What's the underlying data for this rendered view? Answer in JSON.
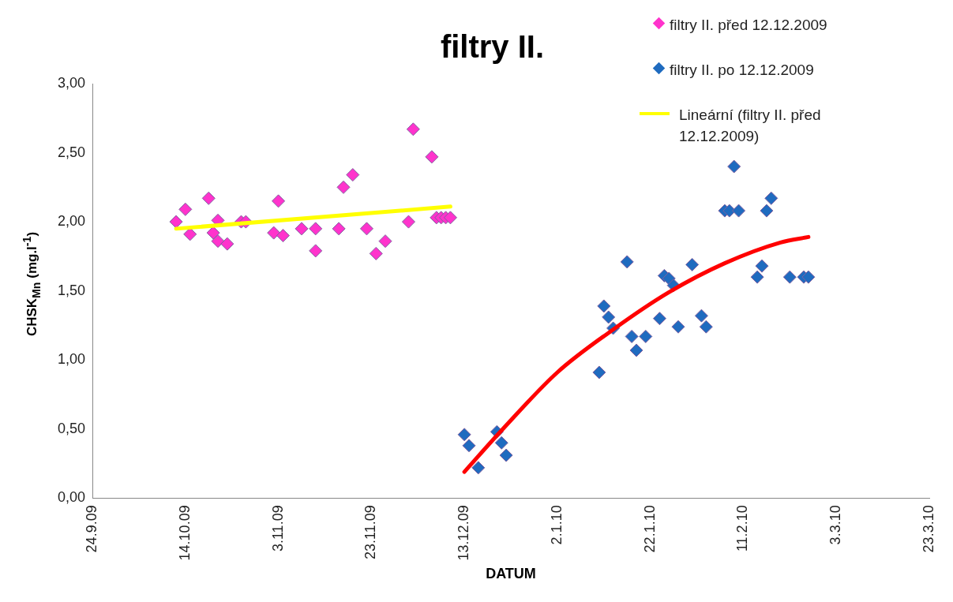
{
  "chart_data": {
    "type": "scatter",
    "title": "filtry II.",
    "xlabel": "DATUM",
    "ylabel": "CHSK$_{Mn}$ (mg.l$^{-1}$)",
    "marker": "diamond",
    "legend": "top right",
    "grid": false,
    "xlim": [
      "2009-09-24",
      "2010-03-23"
    ],
    "xticks": [
      {
        "value": "2009-09-24",
        "label": "24.9.09"
      },
      {
        "value": "2009-10-14",
        "label": "14.10.09"
      },
      {
        "value": "2009-11-03",
        "label": "3.11.09"
      },
      {
        "value": "2009-11-23",
        "label": "23.11.09"
      },
      {
        "value": "2009-12-13",
        "label": "13.12.09"
      },
      {
        "value": "2010-01-02",
        "label": "2.1.10"
      },
      {
        "value": "2010-01-22",
        "label": "22.1.10"
      },
      {
        "value": "2010-02-11",
        "label": "11.2.10"
      },
      {
        "value": "2010-03-03",
        "label": "3.3.10"
      },
      {
        "value": "2010-03-23",
        "label": "23.3.10"
      }
    ],
    "ylim": [
      0,
      3
    ],
    "yticks": [
      {
        "value": 0,
        "label": "0,00"
      },
      {
        "value": 0.5,
        "label": "0,50"
      },
      {
        "value": 1,
        "label": "1,00"
      },
      {
        "value": 1.5,
        "label": "1,50"
      },
      {
        "value": 2,
        "label": "2,00"
      },
      {
        "value": 2.5,
        "label": "2,50"
      },
      {
        "value": 3,
        "label": "3,00"
      }
    ],
    "series": [
      {
        "name": "filtry II. před 12.12.2009",
        "color": "#ff33cc",
        "x": [
          "2009-10-12",
          "2009-10-14",
          "2009-10-15",
          "2009-10-19",
          "2009-10-20",
          "2009-10-21",
          "2009-10-21",
          "2009-10-23",
          "2009-10-26",
          "2009-10-27",
          "2009-11-02",
          "2009-11-03",
          "2009-11-04",
          "2009-11-08",
          "2009-11-11",
          "2009-11-11",
          "2009-11-16",
          "2009-11-17",
          "2009-11-19",
          "2009-11-22",
          "2009-11-24",
          "2009-11-26",
          "2009-12-01",
          "2009-12-02",
          "2009-12-06",
          "2009-12-07",
          "2009-12-08",
          "2009-12-09",
          "2009-12-10"
        ],
        "values": [
          2.0,
          2.09,
          1.91,
          2.17,
          1.92,
          2.01,
          1.86,
          1.84,
          2.0,
          2.0,
          1.92,
          2.15,
          1.9,
          1.95,
          1.95,
          1.79,
          1.95,
          2.25,
          2.34,
          1.95,
          1.77,
          1.86,
          2.0,
          2.67,
          2.47,
          2.03,
          2.03,
          2.03,
          2.03
        ]
      },
      {
        "name": "filtry II. po 12.12.2009",
        "color": "#1f6bbf",
        "x": [
          "2009-12-13",
          "2009-12-14",
          "2009-12-16",
          "2009-12-20",
          "2009-12-21",
          "2009-12-22",
          "2010-01-11",
          "2010-01-12",
          "2010-01-13",
          "2010-01-14",
          "2010-01-17",
          "2010-01-18",
          "2010-01-19",
          "2010-01-21",
          "2010-01-24",
          "2010-01-25",
          "2010-01-26",
          "2010-01-27",
          "2010-01-28",
          "2010-01-31",
          "2010-02-02",
          "2010-02-03",
          "2010-02-07",
          "2010-02-08",
          "2010-02-09",
          "2010-02-10",
          "2010-02-14",
          "2010-02-15",
          "2010-02-16",
          "2010-02-17",
          "2010-02-21",
          "2010-02-24",
          "2010-02-25"
        ],
        "values": [
          0.46,
          0.38,
          0.22,
          0.48,
          0.4,
          0.31,
          0.91,
          1.39,
          1.31,
          1.23,
          1.71,
          1.17,
          1.07,
          1.17,
          1.3,
          1.61,
          1.59,
          1.54,
          1.24,
          1.69,
          1.32,
          1.24,
          2.08,
          2.08,
          2.4,
          2.08,
          1.6,
          1.68,
          2.08,
          2.17,
          1.6,
          1.6,
          1.6
        ]
      },
      {
        "name": "Lineární (filtry II. před 12.12.2009)",
        "type": "line",
        "marker": "none",
        "color": "#ffff00",
        "x": [
          "2009-10-12",
          "2009-12-10"
        ],
        "values": [
          1.95,
          2.11
        ]
      },
      {
        "type": "line",
        "marker": "none",
        "color": "#ff0000",
        "x": [
          "2009-12-13",
          "2009-12-21",
          "2010-01-02",
          "2010-01-14",
          "2010-01-26",
          "2010-02-07",
          "2010-02-19",
          "2010-02-25"
        ],
        "values": [
          0.19,
          0.49,
          0.91,
          1.22,
          1.49,
          1.7,
          1.85,
          1.89
        ]
      }
    ]
  }
}
